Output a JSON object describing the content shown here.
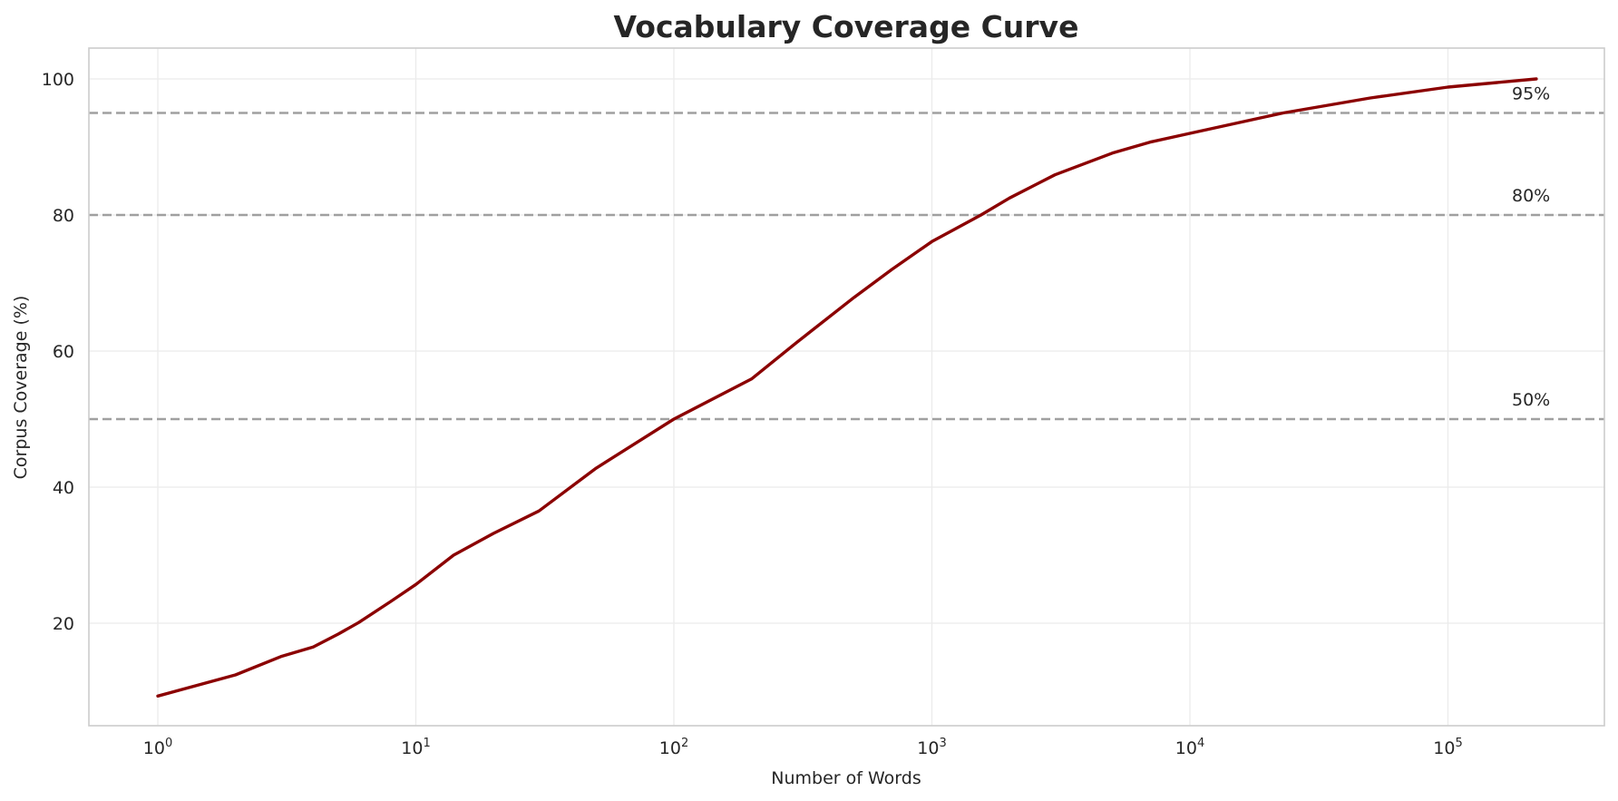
{
  "chart_data": {
    "type": "line",
    "title": "Vocabulary Coverage Curve",
    "xlabel": "Number of Words",
    "ylabel": "Corpus Coverage (%)",
    "xscale": "log",
    "xlim": [
      0.55,
      400000
    ],
    "ylim": [
      4.8,
      104.5
    ],
    "grid": true,
    "legend": null,
    "x_ticks": [
      {
        "value": 1,
        "base": "10",
        "exp": "0"
      },
      {
        "value": 10,
        "base": "10",
        "exp": "1"
      },
      {
        "value": 100,
        "base": "10",
        "exp": "2"
      },
      {
        "value": 1000,
        "base": "10",
        "exp": "3"
      },
      {
        "value": 10000,
        "base": "10",
        "exp": "4"
      },
      {
        "value": 100000,
        "base": "10",
        "exp": "5"
      }
    ],
    "y_ticks": [
      20,
      40,
      60,
      80,
      100
    ],
    "series": [
      {
        "name": "Coverage",
        "color": "#8b0000",
        "x": [
          1,
          2,
          3,
          4,
          5,
          6,
          8,
          10,
          14,
          20,
          30,
          50,
          70,
          100,
          200,
          300,
          500,
          700,
          1000,
          1550,
          2000,
          3000,
          5000,
          7000,
          10000,
          23000,
          50000,
          100000,
          220000
        ],
        "y": [
          9.3,
          12.4,
          15.1,
          16.5,
          18.4,
          20.1,
          23.2,
          25.7,
          30.0,
          33.2,
          36.5,
          42.8,
          46.3,
          50.0,
          55.9,
          61.3,
          67.9,
          72.0,
          76.1,
          80.0,
          82.5,
          85.9,
          89.1,
          90.7,
          92.0,
          95.0,
          97.2,
          98.8,
          100.0
        ]
      }
    ],
    "reference_lines": [
      {
        "y": 95,
        "label": "95%",
        "style": "dashed",
        "color": "#a0a0a0"
      },
      {
        "y": 80,
        "label": "80%",
        "style": "dashed",
        "color": "#a0a0a0"
      },
      {
        "y": 50,
        "label": "50%",
        "style": "dashed",
        "color": "#a0a0a0"
      }
    ]
  },
  "colors": {
    "line": "#8b0000",
    "reference": "#a0a0a0",
    "grid": "#ebebeb",
    "spine": "#cccccc",
    "text": "#262626"
  }
}
